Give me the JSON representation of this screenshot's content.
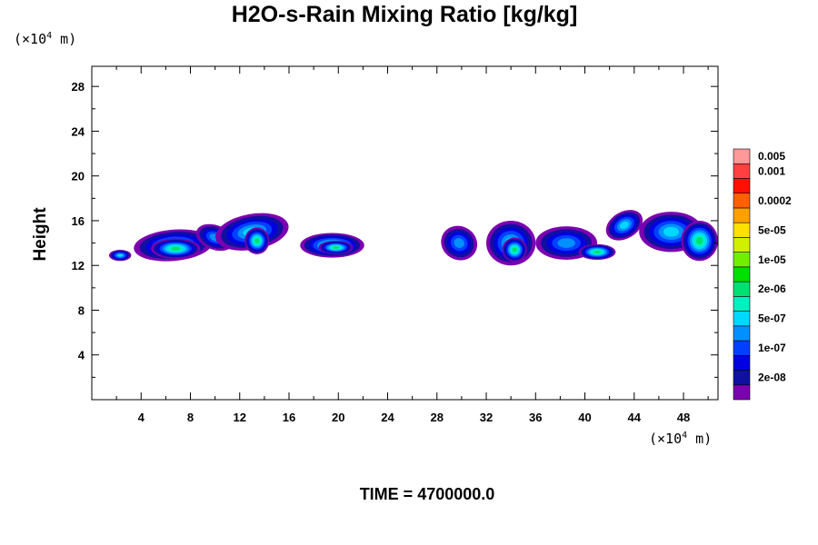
{
  "chart_data": {
    "type": "heatmap",
    "title": "H2O-s-Rain Mixing Ratio [kg/kg]",
    "ylabel": "Height",
    "xunit_prefix": "(×10",
    "xunit_exp": "4",
    "xunit_suffix": " m)",
    "yunit_prefix": "(×10",
    "yunit_exp": "4",
    "yunit_suffix": " m)",
    "xlim": [
      0,
      50.8
    ],
    "ylim": [
      0,
      29.8
    ],
    "x_ticks": [
      4,
      8,
      12,
      16,
      20,
      24,
      28,
      32,
      36,
      40,
      44,
      48
    ],
    "y_ticks": [
      4,
      8,
      12,
      16,
      20,
      24,
      28
    ],
    "colorbar": {
      "colors": [
        "#7b00b0",
        "#1010a0",
        "#0000e0",
        "#0040ff",
        "#0090ff",
        "#00d8ff",
        "#00f0c0",
        "#00e070",
        "#00e000",
        "#70f000",
        "#d0f000",
        "#ffe000",
        "#ffa000",
        "#ff6000",
        "#ff1000",
        "#ff4040",
        "#ff9898"
      ],
      "labels": [
        {
          "text": "2e-08",
          "level": 1
        },
        {
          "text": "1e-07",
          "level": 3
        },
        {
          "text": "5e-07",
          "level": 5
        },
        {
          "text": "2e-06",
          "level": 7
        },
        {
          "text": "1e-05",
          "level": 9
        },
        {
          "text": "5e-05",
          "level": 11
        },
        {
          "text": "0.0002",
          "level": 13
        },
        {
          "text": "0.001",
          "level": 15
        },
        {
          "text": "0.005",
          "level": 16
        }
      ]
    },
    "cells": [
      {
        "x": 2.3,
        "y": 12.9,
        "rx": 0.9,
        "ry": 0.5,
        "rot": 0,
        "level": 5
      },
      {
        "x": 6.6,
        "y": 13.8,
        "rx": 3.2,
        "ry": 1.4,
        "rot": -5,
        "level": 5
      },
      {
        "x": 6.8,
        "y": 13.5,
        "rx": 2.0,
        "ry": 0.9,
        "rot": 0,
        "level": 7
      },
      {
        "x": 10.0,
        "y": 14.5,
        "rx": 1.6,
        "ry": 1.1,
        "rot": 20,
        "level": 4
      },
      {
        "x": 13.0,
        "y": 15.0,
        "rx": 3.0,
        "ry": 1.6,
        "rot": -10,
        "level": 5
      },
      {
        "x": 13.4,
        "y": 14.2,
        "rx": 1.0,
        "ry": 1.2,
        "rot": 0,
        "level": 7
      },
      {
        "x": 19.5,
        "y": 13.8,
        "rx": 2.6,
        "ry": 1.1,
        "rot": 0,
        "level": 6
      },
      {
        "x": 19.8,
        "y": 13.6,
        "rx": 1.4,
        "ry": 0.6,
        "rot": 0,
        "level": 7
      },
      {
        "x": 29.8,
        "y": 14.0,
        "rx": 1.5,
        "ry": 1.5,
        "rot": 30,
        "level": 4
      },
      {
        "x": 34.0,
        "y": 14.0,
        "rx": 2.0,
        "ry": 2.0,
        "rot": 0,
        "level": 5
      },
      {
        "x": 34.3,
        "y": 13.4,
        "rx": 1.0,
        "ry": 1.1,
        "rot": 0,
        "level": 7
      },
      {
        "x": 38.5,
        "y": 14.0,
        "rx": 2.5,
        "ry": 1.5,
        "rot": 0,
        "level": 4
      },
      {
        "x": 41.0,
        "y": 13.2,
        "rx": 1.5,
        "ry": 0.7,
        "rot": 0,
        "level": 7
      },
      {
        "x": 43.2,
        "y": 15.6,
        "rx": 1.6,
        "ry": 1.2,
        "rot": -30,
        "level": 5
      },
      {
        "x": 47.0,
        "y": 15.0,
        "rx": 2.6,
        "ry": 1.8,
        "rot": 0,
        "level": 5
      },
      {
        "x": 49.3,
        "y": 14.2,
        "rx": 1.5,
        "ry": 1.8,
        "rot": 0,
        "level": 7
      }
    ]
  },
  "footer": {
    "time_label": "TIME = 4700000.0"
  }
}
